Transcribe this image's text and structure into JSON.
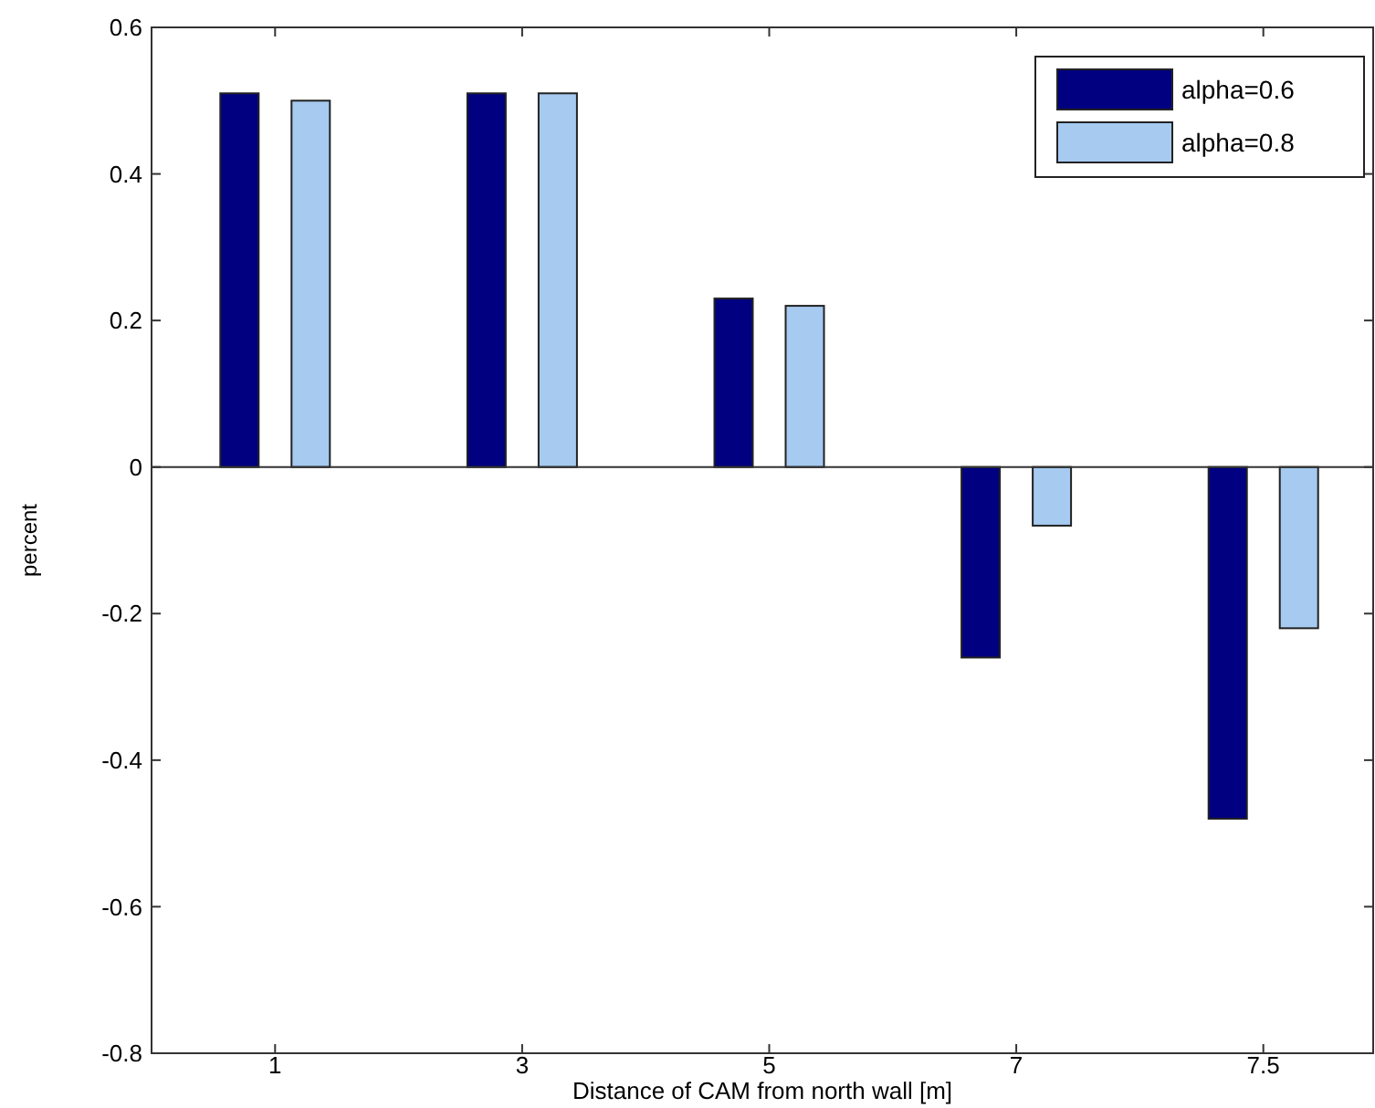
{
  "chart_data": {
    "type": "bar",
    "xlabel": "Distance of CAM from north wall [m]",
    "ylabel": "percent",
    "categories": [
      "1",
      "3",
      "5",
      "7",
      "7.5"
    ],
    "series": [
      {
        "name": "alpha=0.6",
        "color": "#000080",
        "values": [
          0.51,
          0.51,
          0.23,
          -0.26,
          -0.48
        ]
      },
      {
        "name": "alpha=0.8",
        "color": "#a6caf0",
        "values": [
          0.5,
          0.51,
          0.22,
          -0.08,
          -0.22
        ]
      }
    ],
    "ylim": [
      -0.8,
      0.6
    ],
    "yticks": [
      -0.8,
      -0.6,
      -0.4,
      -0.2,
      0,
      0.2,
      0.4,
      0.6
    ],
    "legend": "top right"
  }
}
